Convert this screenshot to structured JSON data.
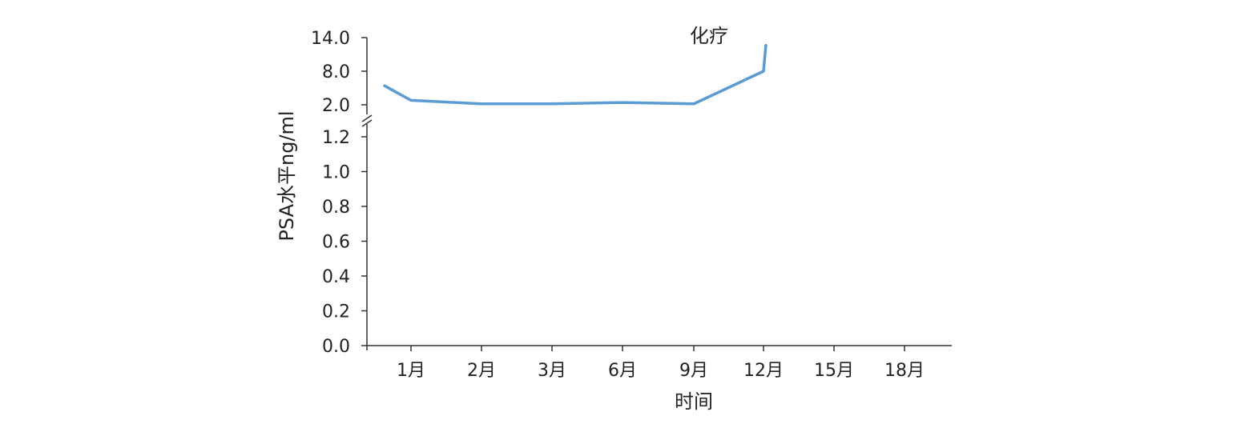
{
  "chart_data": {
    "type": "line",
    "title": "",
    "xlabel": "时间",
    "ylabel": "PSA水平ng/ml",
    "categories": [
      "1月",
      "2月",
      "3月",
      "6月",
      "9月",
      "12月",
      "15月",
      "18月"
    ],
    "y_ticks_lower": [
      "0.0",
      "0.2",
      "0.4",
      "0.6",
      "0.8",
      "1.0",
      "1.2"
    ],
    "y_ticks_upper": [
      "2.0",
      "8.0",
      "14.0"
    ],
    "y_axis_break": true,
    "ylim_lower": [
      0,
      1.4
    ],
    "ylim_upper": [
      2.0,
      14.0
    ],
    "annotation": "化疗",
    "series": [
      {
        "color": "#5b9bd5",
        "points": [
          {
            "x": "0.4月",
            "y": 5.4
          },
          {
            "x": "1月",
            "y": 2.8
          },
          {
            "x": "2月",
            "y": 1.8
          },
          {
            "x": "3月",
            "y": 1.8
          },
          {
            "x": "6月",
            "y": 1.5
          },
          {
            "x": "9月",
            "y": 1.8
          },
          {
            "x": "12月",
            "y": 8.0
          },
          {
            "x": "12.1月",
            "y": 12.6
          }
        ]
      }
    ]
  }
}
